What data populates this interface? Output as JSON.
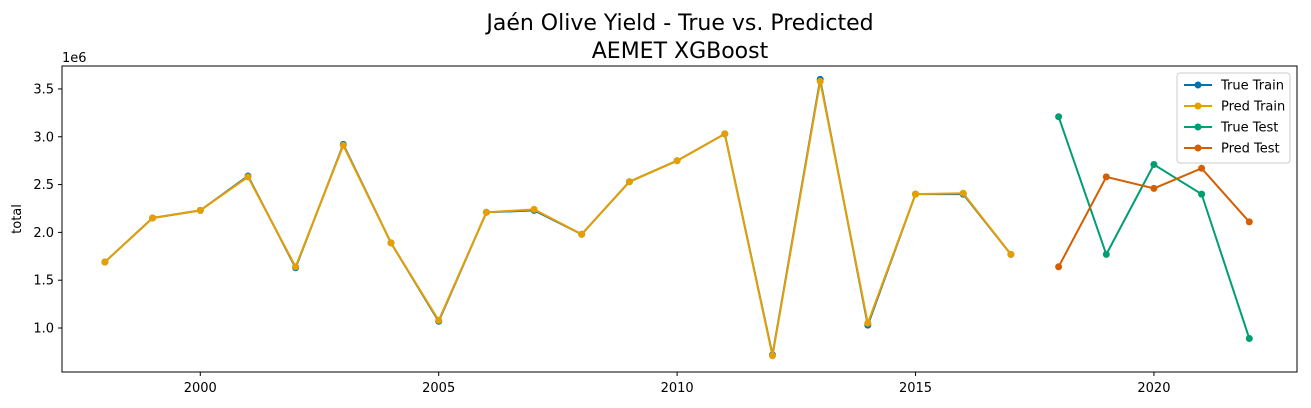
{
  "chart_data": {
    "type": "line",
    "title": "Jaén Olive Yield - True vs. Predicted",
    "subtitle": "AEMET XGBoost",
    "xlabel": "",
    "ylabel": "total",
    "y_offset_label": "1e6",
    "xlim": [
      1997.1,
      2023.0
    ],
    "ylim": [
      0.54,
      3.74
    ],
    "x_ticks": [
      2000,
      2005,
      2010,
      2015,
      2020
    ],
    "y_ticks": [
      1.0,
      1.5,
      2.0,
      2.5,
      3.0,
      3.5
    ],
    "y_tick_labels": [
      "1.0",
      "1.5",
      "2.0",
      "2.5",
      "3.0",
      "3.5"
    ],
    "grid": false,
    "legend_position": "top-right",
    "series": [
      {
        "name": "True Train",
        "color": "#0072b2",
        "x": [
          1998,
          1999,
          2000,
          2001,
          2002,
          2003,
          2004,
          2005,
          2006,
          2007,
          2008,
          2009,
          2010,
          2011,
          2012,
          2013,
          2014,
          2015,
          2016,
          2017
        ],
        "y": [
          1.69,
          2.15,
          2.23,
          2.59,
          1.63,
          2.92,
          1.89,
          1.07,
          2.21,
          2.23,
          1.98,
          2.53,
          2.75,
          3.03,
          0.72,
          3.6,
          1.03,
          2.4,
          2.4,
          1.77
        ]
      },
      {
        "name": "Pred Train",
        "color": "#e69f00",
        "x": [
          1998,
          1999,
          2000,
          2001,
          2002,
          2003,
          2004,
          2005,
          2006,
          2007,
          2008,
          2009,
          2010,
          2011,
          2012,
          2013,
          2014,
          2015,
          2016,
          2017
        ],
        "y": [
          1.69,
          2.15,
          2.23,
          2.58,
          1.64,
          2.91,
          1.89,
          1.08,
          2.21,
          2.24,
          1.98,
          2.53,
          2.75,
          3.03,
          0.71,
          3.58,
          1.05,
          2.4,
          2.41,
          1.77
        ]
      },
      {
        "name": "True Test",
        "color": "#009e73",
        "x": [
          2018,
          2019,
          2020,
          2021,
          2022
        ],
        "y": [
          3.21,
          1.77,
          2.71,
          2.4,
          0.89
        ]
      },
      {
        "name": "Pred Test",
        "color": "#d55e00",
        "x": [
          2018,
          2019,
          2020,
          2021,
          2022
        ],
        "y": [
          1.64,
          2.58,
          2.46,
          2.67,
          2.11
        ]
      }
    ]
  }
}
